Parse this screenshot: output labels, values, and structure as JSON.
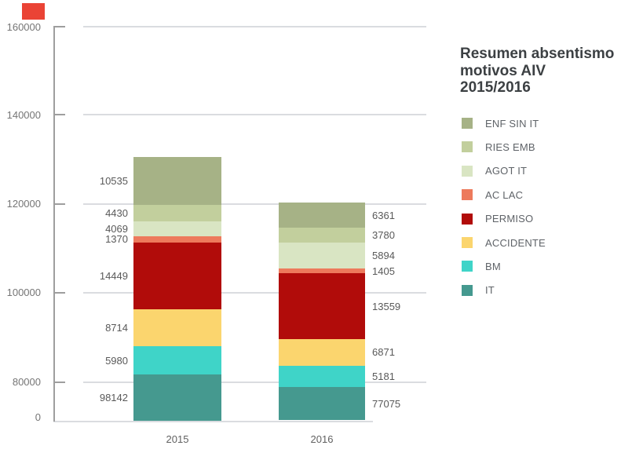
{
  "annotation": {
    "color": "#ea4335"
  },
  "title": {
    "lines": [
      "Resumen absentismo",
      "motivos AIV",
      "2015/2016"
    ]
  },
  "y_axis": {
    "tick_labels": [
      "160000",
      "140000",
      "120000",
      "100000",
      "80000",
      "0"
    ]
  },
  "chart_data": {
    "type": "bar",
    "stacked": true,
    "title": "Resumen absentismo motivos AIV 2015/2016",
    "categories": [
      "2015",
      "2016"
    ],
    "series": [
      {
        "name": "IT",
        "color": "#45998f",
        "values": [
          98142,
          77075
        ]
      },
      {
        "name": "BM",
        "color": "#3fd4c8",
        "values": [
          5980,
          5181
        ]
      },
      {
        "name": "ACCIDENTE",
        "color": "#fbd56e",
        "values": [
          8714,
          6871
        ]
      },
      {
        "name": "PERMISO",
        "color": "#b10c0a",
        "values": [
          14449,
          13559
        ]
      },
      {
        "name": "AC LAC",
        "color": "#ed7a5c",
        "values": [
          1370,
          1405
        ]
      },
      {
        "name": "AGOT IT",
        "color": "#d9e5c3",
        "values": [
          4069,
          5894
        ]
      },
      {
        "name": "RIES EMB",
        "color": "#c2cf9d",
        "values": [
          4430,
          3780
        ]
      },
      {
        "name": "ENF SIN IT",
        "color": "#a6b286",
        "values": [
          10535,
          6361
        ]
      }
    ],
    "y_ticks": [
      0,
      80000,
      100000,
      120000,
      140000,
      160000
    ],
    "ylim": [
      0,
      160000
    ],
    "axis_note": "y-axis compressed between 0 and 80000",
    "grid": true,
    "legend_position": "right",
    "legend_order_top_to_bottom": [
      "ENF SIN IT",
      "RIES EMB",
      "AGOT IT",
      "AC LAC",
      "PERMISO",
      "ACCIDENTE",
      "BM",
      "IT"
    ],
    "data_labels": {
      "2015": {
        "IT": 98142,
        "BM": 5980,
        "ACCIDENTE": 8714,
        "PERMISO": 14449,
        "AC LAC": 1370,
        "AGOT IT": 4069,
        "RIES EMB": 4430,
        "ENF SIN IT": 10535
      },
      "2016": {
        "IT": 77075,
        "BM": 5181,
        "ACCIDENTE": 6871,
        "PERMISO": 13559,
        "AC LAC": 1405,
        "AGOT IT": 5894,
        "RIES EMB": 3780,
        "ENF SIN IT": 6361
      }
    }
  }
}
